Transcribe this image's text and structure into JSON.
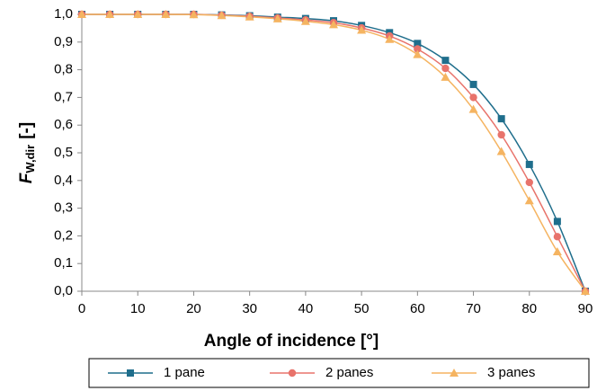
{
  "chart_data": {
    "type": "line",
    "ylabel": {
      "main": "F",
      "sub": "W,dir",
      "unit": "[-]"
    },
    "xlabel": "Angle of incidence [°]",
    "x": [
      0,
      5,
      10,
      15,
      20,
      25,
      30,
      35,
      40,
      45,
      50,
      55,
      60,
      65,
      70,
      75,
      80,
      85,
      90
    ],
    "series": [
      {
        "name": "1 pane",
        "color": "#1f6e8c",
        "marker": "square",
        "values": [
          1,
          1,
          1,
          1,
          1,
          0.998,
          0.995,
          0.99,
          0.985,
          0.977,
          0.96,
          0.934,
          0.895,
          0.834,
          0.747,
          0.623,
          0.458,
          0.252,
          0
        ]
      },
      {
        "name": "2 panes",
        "color": "#e8736b",
        "marker": "circle",
        "values": [
          1,
          1,
          1,
          1,
          1,
          0.997,
          0.993,
          0.987,
          0.98,
          0.97,
          0.951,
          0.922,
          0.875,
          0.805,
          0.7,
          0.565,
          0.393,
          0.197,
          0
        ]
      },
      {
        "name": "3 panes",
        "color": "#f5b461",
        "marker": "triangle",
        "values": [
          1,
          1,
          1,
          1,
          0.999,
          0.996,
          0.991,
          0.984,
          0.975,
          0.963,
          0.943,
          0.91,
          0.855,
          0.773,
          0.657,
          0.505,
          0.327,
          0.143,
          0
        ]
      }
    ],
    "xlim": [
      0,
      90
    ],
    "xticks": [
      0,
      10,
      20,
      30,
      40,
      50,
      60,
      70,
      80,
      90
    ],
    "ylim": [
      0,
      1
    ],
    "yticks": [
      {
        "value": 0,
        "label": "0,0"
      },
      {
        "value": 0.1,
        "label": "0,1"
      },
      {
        "value": 0.2,
        "label": "0,2"
      },
      {
        "value": 0.3,
        "label": "0,3"
      },
      {
        "value": 0.4,
        "label": "0,4"
      },
      {
        "value": 0.5,
        "label": "0,5"
      },
      {
        "value": 0.6,
        "label": "0,6"
      },
      {
        "value": 0.7,
        "label": "0,7"
      },
      {
        "value": 0.8,
        "label": "0,8"
      },
      {
        "value": 0.9,
        "label": "0,9"
      },
      {
        "value": 1,
        "label": "1,0"
      }
    ],
    "grid": false,
    "legend": "bottom"
  }
}
